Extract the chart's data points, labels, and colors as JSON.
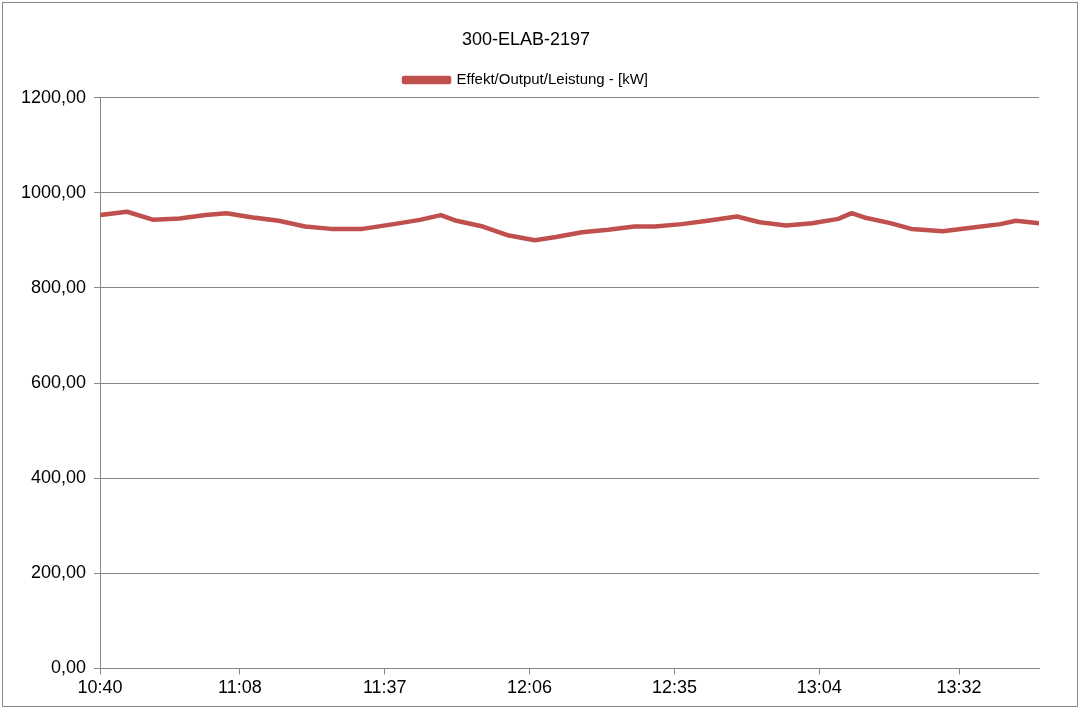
{
  "chart_data": {
    "type": "line",
    "title": "300-ELAB-2197",
    "x": [
      10.667,
      10.757,
      10.845,
      10.932,
      11.019,
      11.089,
      11.176,
      11.263,
      11.351,
      11.438,
      11.542,
      11.647,
      11.734,
      11.804,
      11.856,
      11.944,
      12.031,
      12.118,
      12.188,
      12.275,
      12.362,
      12.45,
      12.519,
      12.607,
      12.694,
      12.792,
      12.868,
      12.956,
      13.043,
      13.13,
      13.175,
      13.217,
      13.304,
      13.374,
      13.479,
      13.566,
      13.671,
      13.723,
      13.8
    ],
    "series": [
      {
        "name": "Effekt/Output/Leistung - [kW]",
        "color": "#c0504d",
        "values": [
          953,
          960,
          943,
          946,
          953,
          957,
          948,
          941,
          929,
          924,
          924,
          934,
          943,
          953,
          941,
          929,
          910,
          900,
          907,
          917,
          922,
          929,
          929,
          934,
          941,
          950,
          938,
          931,
          936,
          945,
          957,
          948,
          936,
          924,
          919,
          926,
          934,
          941,
          936
        ]
      }
    ],
    "xlim": [
      10.6667,
      13.8
    ],
    "xticks": [
      {
        "value": 10.6667,
        "label": "10:40"
      },
      {
        "value": 11.1333,
        "label": "11:08"
      },
      {
        "value": 11.6167,
        "label": "11:37"
      },
      {
        "value": 12.1,
        "label": "12:06"
      },
      {
        "value": 12.5833,
        "label": "12:35"
      },
      {
        "value": 13.0667,
        "label": "13:04"
      },
      {
        "value": 13.5333,
        "label": "13:32"
      }
    ],
    "ylim": [
      0,
      1200
    ],
    "yticks": [
      {
        "value": 0,
        "label": "0,00"
      },
      {
        "value": 200,
        "label": "200,00"
      },
      {
        "value": 400,
        "label": "400,00"
      },
      {
        "value": 600,
        "label": "600,00"
      },
      {
        "value": 800,
        "label": "800,00"
      },
      {
        "value": 1000,
        "label": "1000,00"
      },
      {
        "value": 1200,
        "label": "1200,00"
      }
    ],
    "grid": "y",
    "legend": "top",
    "marker": "none",
    "line_style": "solid"
  }
}
